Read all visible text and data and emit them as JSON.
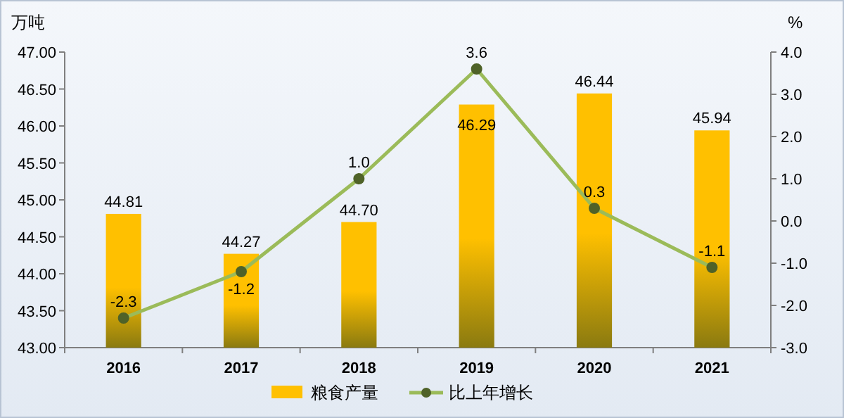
{
  "chart_data": {
    "type": "bar",
    "categories": [
      "2016",
      "2017",
      "2018",
      "2019",
      "2020",
      "2021"
    ],
    "series": [
      {
        "name": "粮食产量",
        "color": "#ffc000",
        "values": [
          44.81,
          44.27,
          44.7,
          46.29,
          46.44,
          45.94
        ],
        "value_labels": [
          "44.81",
          "44.27",
          "44.70",
          "46.29",
          "46.44",
          "45.94"
        ]
      },
      {
        "name": "比上年增长",
        "type": "line",
        "axis": "y2",
        "color": "#9bbb59",
        "marker": "circle",
        "values": [
          -2.3,
          -1.2,
          1.0,
          3.6,
          0.3,
          -1.1
        ],
        "value_labels": [
          "-2.3",
          "-1.2",
          "1.0",
          "3.6",
          "0.3",
          "-1.1"
        ]
      }
    ],
    "ylabel": "万吨",
    "y2label": "%",
    "ylim": [
      43,
      47
    ],
    "yticks": [
      {
        "value": 43,
        "label": "43.00"
      },
      {
        "value": 43.5,
        "label": "43.50"
      },
      {
        "value": 44,
        "label": "44.00"
      },
      {
        "value": 44.5,
        "label": "44.50"
      },
      {
        "value": 45,
        "label": "45.00"
      },
      {
        "value": 45.5,
        "label": "45.50"
      },
      {
        "value": 46,
        "label": "46.00"
      },
      {
        "value": 46.5,
        "label": "46.50"
      },
      {
        "value": 47,
        "label": "47.00"
      }
    ],
    "y2lim": [
      -3,
      4
    ],
    "y2ticks": [
      {
        "value": -3,
        "label": "-3.0"
      },
      {
        "value": -2,
        "label": "-2.0"
      },
      {
        "value": -1,
        "label": "-1.0"
      },
      {
        "value": 0,
        "label": "0.0"
      },
      {
        "value": 1,
        "label": "1.0"
      },
      {
        "value": 2,
        "label": "2.0"
      },
      {
        "value": 3,
        "label": "3.0"
      },
      {
        "value": 4,
        "label": "4.0"
      }
    ],
    "legend": "bottom",
    "grid": false
  }
}
